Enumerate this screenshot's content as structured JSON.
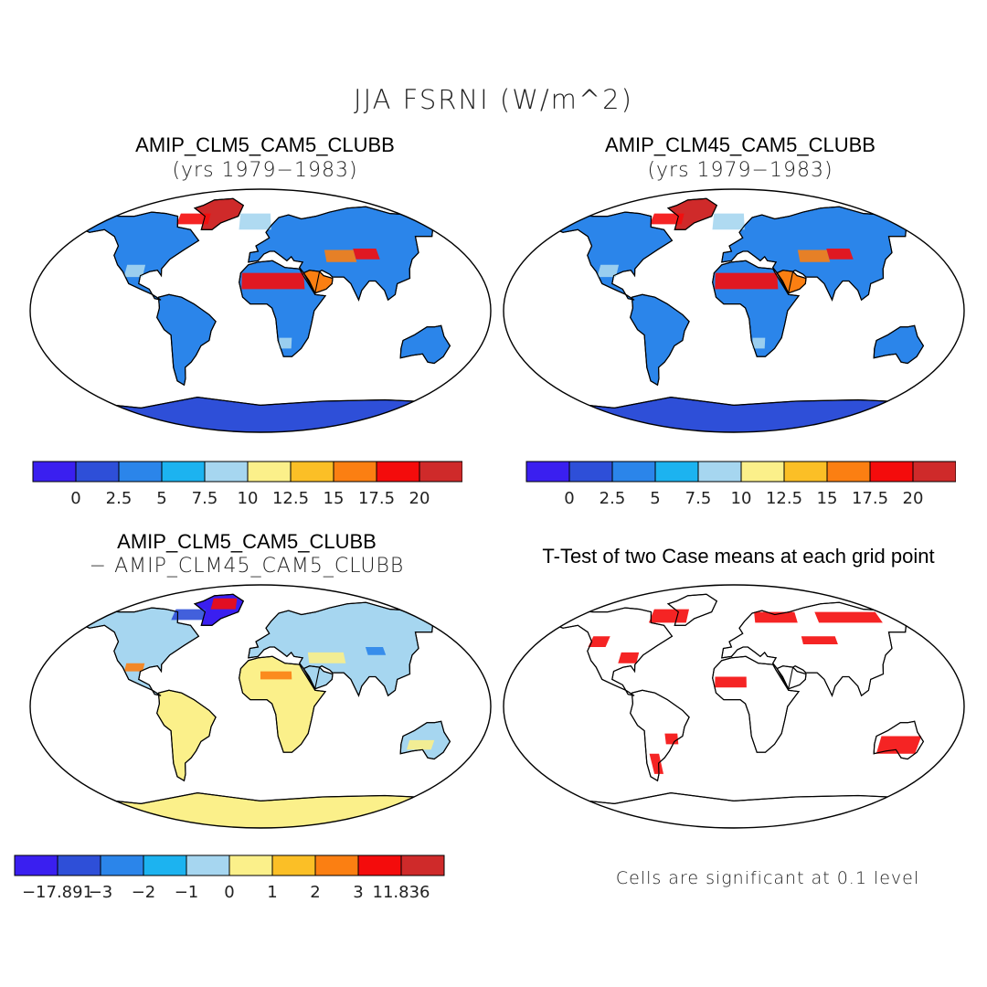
{
  "figure": {
    "title": "JJA FSRNI (W/m^2)"
  },
  "panels": [
    {
      "id": "clm5",
      "title": "AMIP_CLM5_CAM5_CLUBB",
      "subtitle": "(yrs 1979−1983)"
    },
    {
      "id": "clm45",
      "title": "AMIP_CLM45_CAM5_CLUBB",
      "subtitle": "(yrs 1979−1983)"
    },
    {
      "id": "diff",
      "title": "AMIP_CLM5_CAM5_CLUBB",
      "subtitle": "− AMIP_CLM45_CAM5_CLUBB"
    },
    {
      "id": "ttest",
      "title": "T-Test of two Case means at each grid point",
      "subtitle": ""
    }
  ],
  "colorbars": {
    "mean": {
      "colors": [
        "#3a1ff0",
        "#2e4fd8",
        "#2b85ea",
        "#1cb3f0",
        "#a6d6f0",
        "#fbf08a",
        "#fbbf26",
        "#fb7f12",
        "#f40c0c",
        "#cf2a2a"
      ],
      "labels": [
        "0",
        "2.5",
        "5",
        "7.5",
        "10",
        "12.5",
        "15",
        "17.5",
        "20"
      ]
    },
    "diff": {
      "colors": [
        "#3a1ff0",
        "#2e4fd8",
        "#2b85ea",
        "#1cb3f0",
        "#a6d6f0",
        "#fbf08a",
        "#fbbf26",
        "#fb7f12",
        "#f40c0c",
        "#cf2a2a"
      ],
      "labels": [
        "−17.891",
        "−3",
        "−2",
        "−1",
        "0",
        "1",
        "2",
        "3",
        "11.836"
      ]
    }
  },
  "ttest_note": "Cells are significant at 0.1 level",
  "colors": {
    "land_mean": "#2b85ea",
    "antarctica": "#2e4fd8",
    "desert_hot": "#f40c0c",
    "desert_warm": "#fb7f12",
    "greenland": "#cf2a2a",
    "diff_land": "#a6d6f0",
    "diff_pos": "#fbf08a",
    "significant": "#f40c0c"
  }
}
